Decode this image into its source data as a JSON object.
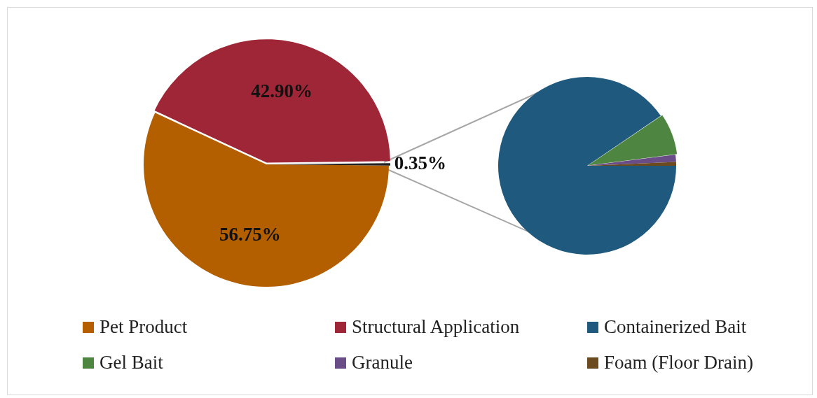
{
  "chart_data": [
    {
      "type": "pie",
      "categories": [
        "Pet Product",
        "Structural Application",
        null
      ],
      "values": [
        56.75,
        42.9,
        0.35
      ],
      "colors": [
        "#b35f00",
        "#9e2636",
        "#222222"
      ],
      "value_labels": [
        "56.75%",
        "42.90%",
        "0.35%"
      ],
      "legend": "bottom"
    },
    {
      "type": "pie",
      "categories": [
        "Containerized Bait",
        "Gel Bait",
        "Granule",
        "Foam (Floor Drain)"
      ],
      "values": [
        90.5,
        7.5,
        1.3,
        0.7
      ],
      "colors": [
        "#1f5a7e",
        "#4e8540",
        "#6a4c86",
        "#6b4a20"
      ],
      "legend": "bottom"
    }
  ]
}
